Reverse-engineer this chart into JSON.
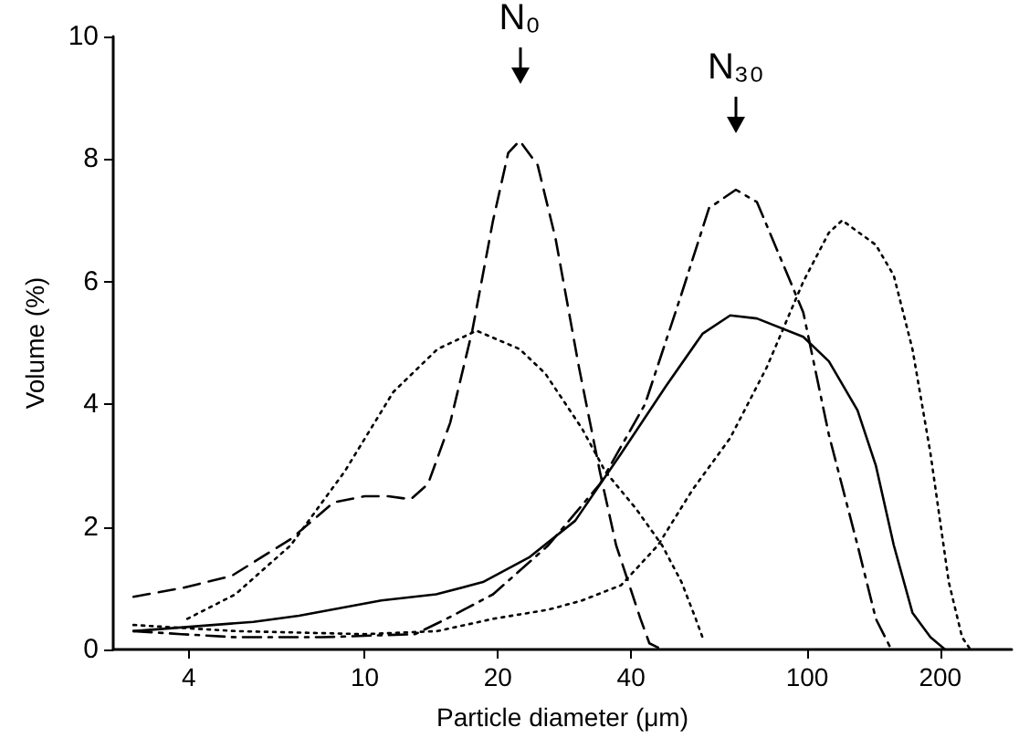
{
  "chart_data": {
    "type": "line",
    "xlabel": "Particle diameter (μm)",
    "ylabel": "Volume (%)",
    "log": "x",
    "xlim": [
      2.7,
      290
    ],
    "xticks": [
      4,
      10,
      20,
      40,
      100,
      200
    ],
    "ylim": [
      0,
      10
    ],
    "yticks": [
      0,
      2,
      4,
      6,
      8,
      10
    ],
    "grid": false,
    "marker": "none",
    "annotations": [
      {
        "text": "N₀",
        "x": 22.4,
        "y": 8.3
      },
      {
        "text": "N₃₀",
        "x": 69,
        "y": 7.5
      }
    ],
    "series": [
      {
        "color": "#000000",
        "line_style": "dashed",
        "x": [
          3,
          3.85,
          5.0,
          6.8,
          8.5,
          10,
          11.3,
          12.7,
          13.9,
          15.6,
          17.5,
          19.5,
          21.1,
          22.4,
          24.6,
          27,
          30.5,
          34,
          37,
          42,
          44,
          47
        ],
        "values": [
          0.86,
          1.0,
          1.2,
          1.8,
          2.4,
          2.5,
          2.5,
          2.45,
          2.7,
          3.7,
          5.2,
          7.0,
          8.1,
          8.3,
          7.9,
          6.7,
          4.6,
          2.9,
          1.7,
          0.5,
          0.1,
          0
        ]
      },
      {
        "color": "#000000",
        "line_style": "dotted",
        "x": [
          3.97,
          5.1,
          6.8,
          9.0,
          11.6,
          14.6,
          17.9,
          22.4,
          25.6,
          31,
          35,
          41,
          47,
          52,
          56,
          58
        ],
        "values": [
          0.5,
          0.9,
          1.7,
          2.9,
          4.2,
          4.9,
          5.2,
          4.9,
          4.5,
          3.6,
          2.9,
          2.3,
          1.7,
          1.1,
          0.5,
          0.2
        ]
      },
      {
        "color": "#000000",
        "line_style": "dashdot",
        "x": [
          3,
          3.85,
          5.1,
          8,
          13,
          15.3,
          19.5,
          26,
          34,
          43,
          52,
          60,
          69,
          77,
          98,
          112,
          130,
          143,
          155
        ],
        "values": [
          0.3,
          0.25,
          0.2,
          0.2,
          0.25,
          0.5,
          0.9,
          1.7,
          2.7,
          4.0,
          5.8,
          7.2,
          7.5,
          7.3,
          5.5,
          3.5,
          1.7,
          0.5,
          0
        ]
      },
      {
        "color": "#000000",
        "line_style": "solid",
        "x": [
          3,
          5.6,
          7.1,
          10.9,
          14.5,
          18.5,
          23.5,
          29.9,
          38,
          48,
          58,
          67,
          77,
          98,
          112,
          130,
          143,
          157,
          173,
          190,
          205
        ],
        "values": [
          0.3,
          0.45,
          0.55,
          0.8,
          0.9,
          1.1,
          1.5,
          2.1,
          3.2,
          4.3,
          5.15,
          5.45,
          5.4,
          5.1,
          4.7,
          3.9,
          3.0,
          1.7,
          0.6,
          0.2,
          0
        ]
      },
      {
        "color": "#000000",
        "line_style": "dotted",
        "x": [
          3,
          5.1,
          10,
          14.6,
          19.5,
          26,
          31,
          38,
          46,
          55,
          67,
          81,
          98,
          112,
          120,
          143,
          157,
          173,
          190,
          209,
          224,
          234
        ],
        "values": [
          0.4,
          0.3,
          0.25,
          0.3,
          0.5,
          0.65,
          0.8,
          1.05,
          1.7,
          2.6,
          3.45,
          4.6,
          6.0,
          6.8,
          7.0,
          6.6,
          6.1,
          4.9,
          3.2,
          1.1,
          0.2,
          0
        ]
      }
    ]
  }
}
